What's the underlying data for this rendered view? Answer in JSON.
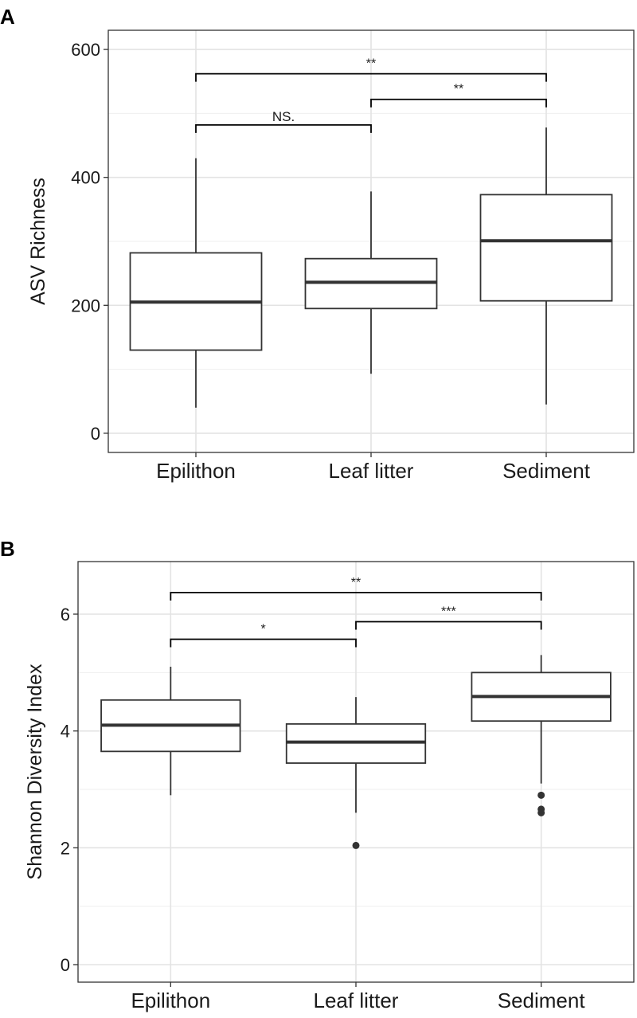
{
  "chart_data": [
    {
      "type": "box",
      "panel_label": "A",
      "ylabel": "ASV Richness",
      "xlabel": "",
      "ylim": [
        -30,
        630
      ],
      "y_ticks": [
        0,
        200,
        400,
        600
      ],
      "y_tick_labels": [
        "0",
        "200",
        "400",
        "600"
      ],
      "grid": true,
      "categories": [
        "Epilithon",
        "Leaf litter",
        "Sediment"
      ],
      "boxes": [
        {
          "category": "Epilithon",
          "min": 40,
          "q1": 130,
          "median": 205,
          "q3": 282,
          "max": 430,
          "outliers": []
        },
        {
          "category": "Leaf litter",
          "min": 93,
          "q1": 195,
          "median": 236,
          "q3": 273,
          "max": 378,
          "outliers": []
        },
        {
          "category": "Sediment",
          "min": 45,
          "q1": 207,
          "median": 301,
          "q3": 373,
          "max": 478,
          "outliers": []
        }
      ],
      "comparisons": [
        {
          "from": "Epilithon",
          "to": "Leaf litter",
          "label": "NS.",
          "y": 482
        },
        {
          "from": "Leaf litter",
          "to": "Sediment",
          "label": "**",
          "y": 522
        },
        {
          "from": "Epilithon",
          "to": "Sediment",
          "label": "**",
          "y": 562
        }
      ]
    },
    {
      "type": "box",
      "panel_label": "B",
      "ylabel": "Shannon Diversity Index",
      "xlabel": "",
      "ylim": [
        -0.3,
        6.9
      ],
      "y_ticks": [
        0,
        2,
        4,
        6
      ],
      "y_tick_labels": [
        "0",
        "2",
        "4",
        "6"
      ],
      "grid": true,
      "categories": [
        "Epilithon",
        "Leaf litter",
        "Sediment"
      ],
      "boxes": [
        {
          "category": "Epilithon",
          "min": 2.9,
          "q1": 3.65,
          "median": 4.1,
          "q3": 4.53,
          "max": 5.1,
          "outliers": []
        },
        {
          "category": "Leaf litter",
          "min": 2.6,
          "q1": 3.45,
          "median": 3.81,
          "q3": 4.12,
          "max": 4.58,
          "outliers": [
            2.04
          ]
        },
        {
          "category": "Sediment",
          "min": 3.1,
          "q1": 4.17,
          "median": 4.59,
          "q3": 5.0,
          "max": 5.3,
          "outliers": [
            2.9,
            2.66,
            2.6
          ]
        }
      ],
      "comparisons": [
        {
          "from": "Epilithon",
          "to": "Leaf litter",
          "label": "*",
          "y": 5.57
        },
        {
          "from": "Leaf litter",
          "to": "Sediment",
          "label": "***",
          "y": 5.87
        },
        {
          "from": "Epilithon",
          "to": "Sediment",
          "label": "**",
          "y": 6.37
        }
      ]
    }
  ]
}
